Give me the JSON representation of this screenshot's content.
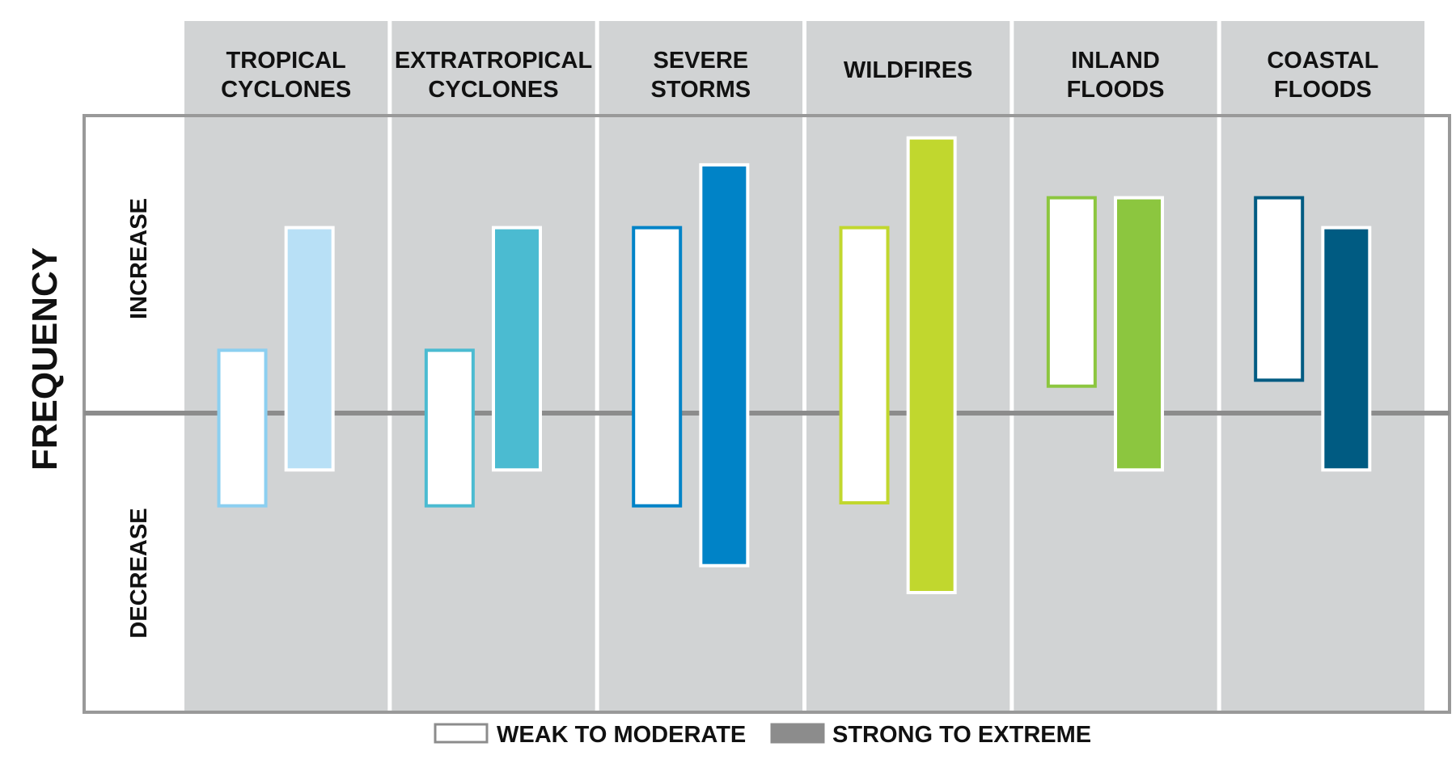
{
  "chart_data": {
    "type": "bar",
    "ylabel": "FREQUENCY",
    "y_annotations": {
      "upper": "INCREASE",
      "lower": "DECREASE"
    },
    "ylim": [
      -1,
      1
    ],
    "grid": false,
    "legend_position": "bottom-center",
    "legend": [
      {
        "key": "weak",
        "label": "WEAK TO MODERATE",
        "fill": "#ffffff",
        "stroke": "#8c8c8c"
      },
      {
        "key": "strong",
        "label": "STRONG TO EXTREME",
        "fill": "#8c8c8c",
        "stroke": "#8c8c8c"
      }
    ],
    "categories": [
      {
        "lines": [
          "TROPICAL",
          "CYCLONES"
        ],
        "color": "#b8e0f6",
        "border": "#8ccff0",
        "weak": {
          "low": -0.31,
          "high": 0.21
        },
        "strong": {
          "low": -0.19,
          "high": 0.62
        }
      },
      {
        "lines": [
          "EXTRATROPICAL",
          "CYCLONES"
        ],
        "color": "#4bbbd1",
        "border": "#4bbbd1",
        "weak": {
          "low": -0.31,
          "high": 0.21
        },
        "strong": {
          "low": -0.19,
          "high": 0.62
        }
      },
      {
        "lines": [
          "SEVERE",
          "STORMS"
        ],
        "color": "#0083c7",
        "border": "#0083c7",
        "weak": {
          "low": -0.31,
          "high": 0.62
        },
        "strong": {
          "low": -0.51,
          "high": 0.83
        }
      },
      {
        "lines": [
          "WILDFIRES"
        ],
        "color": "#c1d72e",
        "border": "#c1d72e",
        "weak": {
          "low": -0.3,
          "high": 0.62
        },
        "strong": {
          "low": -0.6,
          "high": 0.92
        }
      },
      {
        "lines": [
          "INLAND",
          "FLOODS"
        ],
        "color": "#8cc63f",
        "border": "#8cc63f",
        "weak": {
          "low": 0.09,
          "high": 0.72
        },
        "strong": {
          "low": -0.19,
          "high": 0.72
        }
      },
      {
        "lines": [
          "COASTAL",
          "FLOODS"
        ],
        "color": "#005b82",
        "border": "#005b82",
        "weak": {
          "low": 0.11,
          "high": 0.72
        },
        "strong": {
          "low": -0.19,
          "high": 0.62
        }
      }
    ]
  }
}
